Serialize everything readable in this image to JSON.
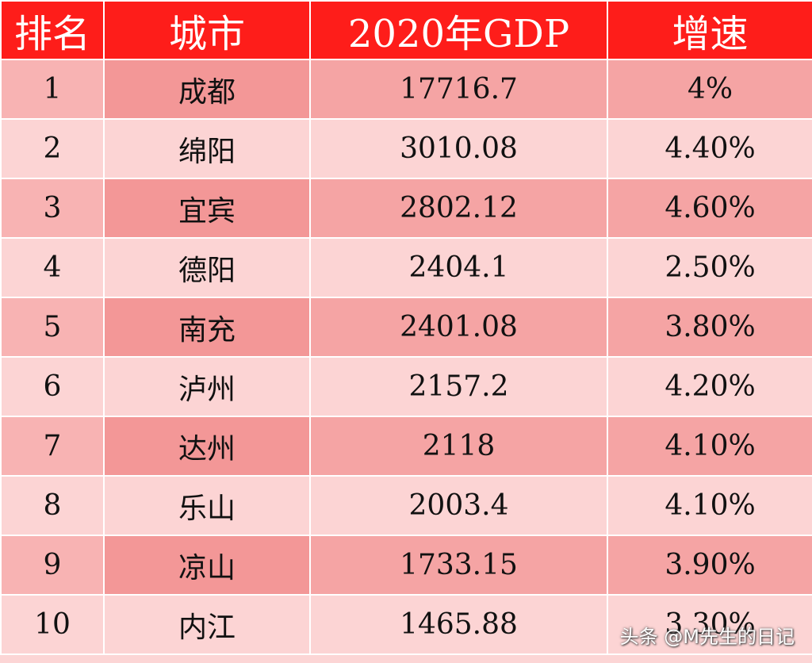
{
  "table": {
    "header": [
      "排名",
      "城市",
      "2020年GDP",
      "增速"
    ],
    "rows": [
      [
        "1",
        "成都",
        "17716.7",
        "4%"
      ],
      [
        "2",
        "绵阳",
        "3010.08",
        "4.40%"
      ],
      [
        "3",
        "宜宾",
        "2802.12",
        "4.60%"
      ],
      [
        "4",
        "德阳",
        "2404.1",
        "2.50%"
      ],
      [
        "5",
        "南充",
        "2401.08",
        "3.80%"
      ],
      [
        "6",
        "泸州",
        "2157.2",
        "4.20%"
      ],
      [
        "7",
        "达州",
        "2118",
        "4.10%"
      ],
      [
        "8",
        "乐山",
        "2003.4",
        "4.10%"
      ],
      [
        "9",
        "凉山",
        "1733.15",
        "3.90%"
      ],
      [
        "10",
        "内江",
        "1465.88",
        "3.30%"
      ]
    ]
  },
  "watermark": "头条 @M先生的日记"
}
